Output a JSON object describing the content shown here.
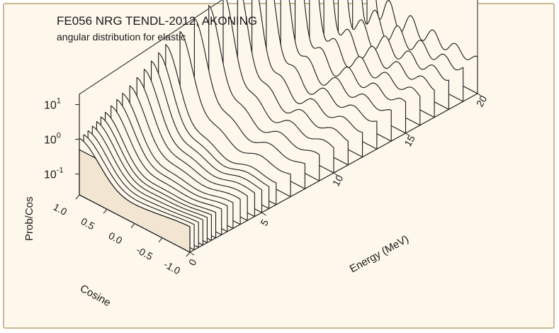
{
  "chart_data": {
    "type": "area",
    "title": "FE056 NRG TENDL-2012, AKONING",
    "subtitle": "angular distribution for elastic",
    "xlabel": "Cosine",
    "ylabel": "Energy (MeV)",
    "zlabel": "Prob/Cos",
    "x_ticks": [
      "1.0",
      "0.5",
      "0.0",
      "-0.5",
      "-1.0"
    ],
    "y_ticks": [
      "0",
      "5",
      "10",
      "15",
      "20"
    ],
    "z_ticks": [
      {
        "base": "10",
        "exp": "1"
      },
      {
        "base": "10",
        "exp": "0"
      },
      {
        "base": "10",
        "exp": "-1"
      }
    ],
    "xlim": [
      1.0,
      -1.0
    ],
    "ylim": [
      0,
      20
    ],
    "zlim_log10": [
      -1.6,
      2.2
    ],
    "z_scale": "log",
    "grid": false,
    "series": [
      {
        "energy": 0.0,
        "forward_peak_log10": -0.05
      },
      {
        "energy": 0.3,
        "forward_peak_log10": -0.03
      },
      {
        "energy": 0.6,
        "forward_peak_log10": 0.0
      },
      {
        "energy": 0.9,
        "forward_peak_log10": 0.05
      },
      {
        "energy": 1.2,
        "forward_peak_log10": 0.1
      },
      {
        "energy": 1.5,
        "forward_peak_log10": 0.15
      },
      {
        "energy": 1.8,
        "forward_peak_log10": 0.2
      },
      {
        "energy": 2.2,
        "forward_peak_log10": 0.28
      },
      {
        "energy": 2.6,
        "forward_peak_log10": 0.35
      },
      {
        "energy": 3.0,
        "forward_peak_log10": 0.42
      },
      {
        "energy": 3.5,
        "forward_peak_log10": 0.5
      },
      {
        "energy": 4.0,
        "forward_peak_log10": 0.6
      },
      {
        "energy": 4.5,
        "forward_peak_log10": 0.7
      },
      {
        "energy": 5.0,
        "forward_peak_log10": 0.8
      },
      {
        "energy": 5.5,
        "forward_peak_log10": 0.9
      },
      {
        "energy": 6.0,
        "forward_peak_log10": 1.0
      },
      {
        "energy": 7.0,
        "forward_peak_log10": 1.1
      },
      {
        "energy": 8.0,
        "forward_peak_log10": 1.2
      },
      {
        "energy": 9.0,
        "forward_peak_log10": 1.3
      },
      {
        "energy": 10.0,
        "forward_peak_log10": 1.4
      },
      {
        "energy": 11.0,
        "forward_peak_log10": 1.45
      },
      {
        "energy": 12.0,
        "forward_peak_log10": 1.5
      },
      {
        "energy": 13.0,
        "forward_peak_log10": 1.55
      },
      {
        "energy": 14.0,
        "forward_peak_log10": 1.62
      },
      {
        "energy": 15.0,
        "forward_peak_log10": 1.7
      },
      {
        "energy": 16.0,
        "forward_peak_log10": 1.78
      },
      {
        "energy": 17.0,
        "forward_peak_log10": 1.85
      },
      {
        "energy": 18.0,
        "forward_peak_log10": 1.92
      },
      {
        "energy": 19.0,
        "forward_peak_log10": 2.0
      },
      {
        "energy": 20.0,
        "forward_peak_log10": 2.1
      }
    ]
  },
  "colors": {
    "background": "#fdf7ec",
    "frame_border": "#cdb991",
    "curve_fill": "#fdf7ec",
    "curve_stroke": "#1a1a1a",
    "front_face": "#f2e6d2",
    "box_line": "#222222"
  }
}
